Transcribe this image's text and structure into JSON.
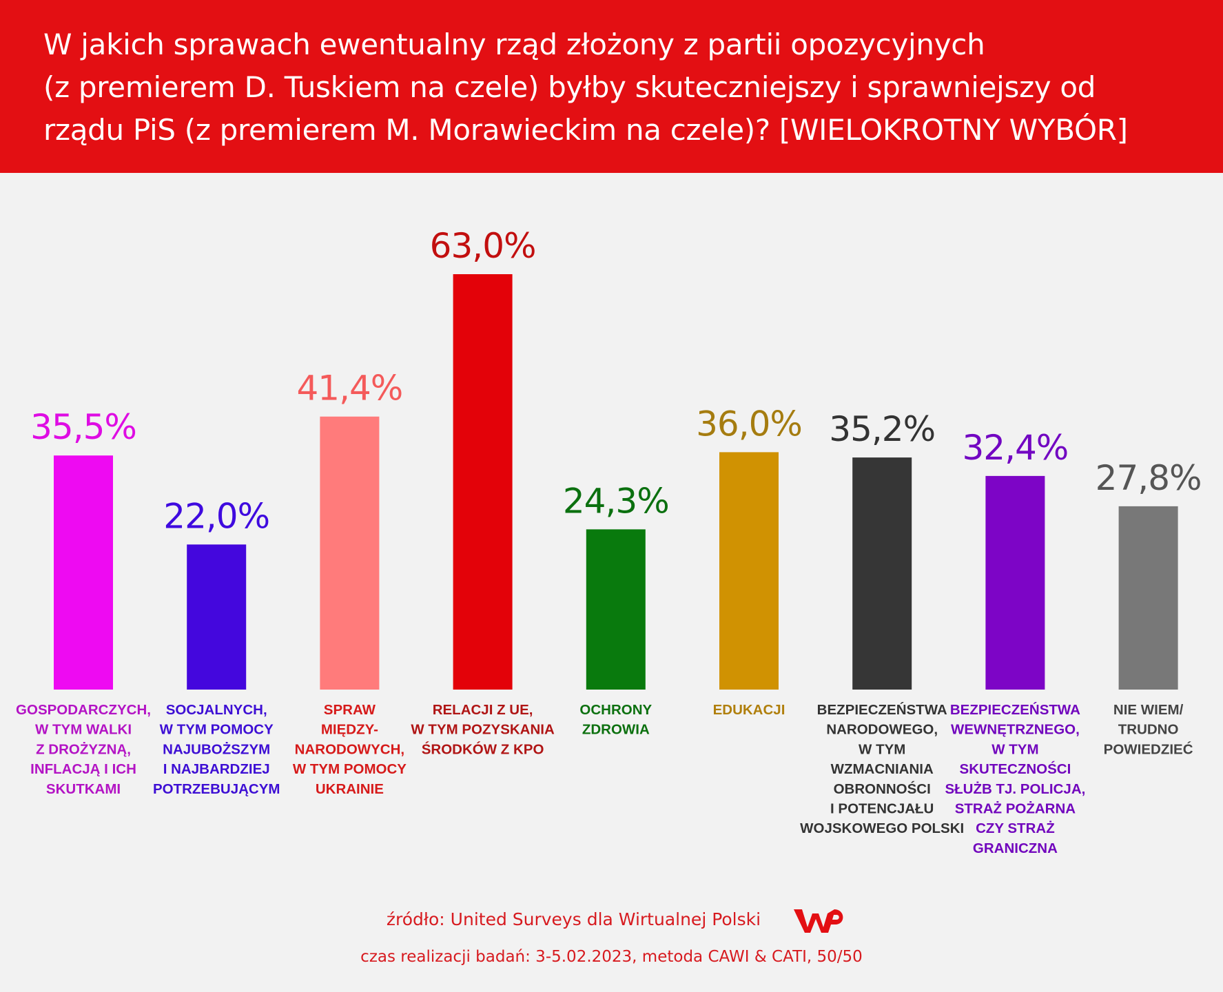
{
  "header": {
    "title_lines": [
      "W jakich sprawach ewentualny rząd złożony z partii opozycyjnych",
      "(z premierem D. Tuskiem na czele) byłby skuteczniejszy i sprawniejszy od",
      "rządu PiS (z premierem M. Morawieckim na czele)? [WIELOKROTNY WYBÓR]"
    ]
  },
  "chart_data": {
    "type": "bar",
    "title": "W jakich sprawach ewentualny rząd złożony z partii opozycyjnych (z premierem D. Tuskiem na czele) byłby skuteczniejszy i sprawniejszy od rządu PiS (z premierem M. Morawieckim na czele)? [WIELOKROTNY WYBÓR]",
    "xlabel": "",
    "ylabel": "",
    "ylim": [
      0,
      63
    ],
    "grid": false,
    "legend": "none",
    "value_suffix": "%",
    "categories": [
      "GOSPODARCZYCH, W TYM WALKI Z DROŻYZNĄ, INFLACJĄ I ICH SKUTKAMI",
      "SOCJALNYCH, W TYM POMOCY NAJUBOŻSZYM I NAJBARDZIEJ POTRZEBUJĄCYM",
      "SPRAW MIĘDZY-NARODOWYCH, W TYM POMOCY UKRAINIE",
      "RELACJI Z UE, W TYM POZYSKANIA ŚRODKÓW Z KPO",
      "OCHRONY ZDROWIA",
      "EDUKACJI",
      "BEZPIECZEŃSTWA NARODOWEGO, W TYM WZMACNIANIA OBRONNOŚCI I POTENCJAŁU WOJSKOWEGO POLSKI",
      "BEZPIECZEŃSTWA WEWNĘTRZNEGO, W TYM SKUTECZNOŚCI SŁUŻB TJ. POLICJA, STRAŻ POŻARNA CZY STRAŻ GRANICZNA",
      "NIE WIEM/ TRUDNO POWIEDZIEĆ"
    ],
    "category_lines": [
      [
        "GOSPODARCZYCH,",
        "W TYM WALKI",
        "Z DROŻYZNĄ,",
        "INFLACJĄ I ICH",
        "SKUTKAMI"
      ],
      [
        "SOCJALNYCH,",
        "W TYM POMOCY",
        "NAJUBOŻSZYM",
        "I NAJBARDZIEJ",
        "POTRZEBUJĄCYM"
      ],
      [
        "SPRAW",
        "MIĘDZY-",
        "NARODOWYCH,",
        "W TYM POMOCY",
        "UKRAINIE"
      ],
      [
        "RELACJI Z UE,",
        "W TYM POZYSKANIA",
        "ŚRODKÓW Z KPO"
      ],
      [
        "OCHRONY",
        "ZDROWIA"
      ],
      [
        "EDUKACJI"
      ],
      [
        "BEZPIECZEŃSTWA",
        "NARODOWEGO,",
        "W TYM",
        "WZMACNIANIA",
        "OBRONNOŚCI",
        "I POTENCJAŁU",
        "WOJSKOWEGO POLSKI"
      ],
      [
        "BEZPIECZEŃSTWA",
        "WEWNĘTRZNEGO,",
        "W TYM",
        "SKUTECZNOŚCI",
        "SŁUŻB TJ. POLICJA,",
        "STRAŻ POŻARNA",
        "CZY STRAŻ",
        "GRANICZNA"
      ],
      [
        "NIE WIEM/",
        "TRUDNO",
        "POWIEDZIEĆ"
      ]
    ],
    "values": [
      35.5,
      22.0,
      41.4,
      63.0,
      24.3,
      36.0,
      35.2,
      32.4,
      27.8
    ],
    "value_labels": [
      "35,5%",
      "22,0%",
      "41,4%",
      "63,0%",
      "24,3%",
      "36,0%",
      "35,2%",
      "32,4%",
      "27,8%"
    ],
    "bar_colors": [
      "#ee0af2",
      "#4407dd",
      "#ff7b7b",
      "#e30209",
      "#097a0d",
      "#d09202",
      "#363636",
      "#7d05c6",
      "#787878"
    ],
    "value_label_colors": [
      "#de0ce3",
      "#3f0adf",
      "#f45a5a",
      "#c20f0f",
      "#0b700f",
      "#a57c10",
      "#333333",
      "#7206c2",
      "#555555"
    ],
    "category_label_colors": [
      "#b313c4",
      "#3d0ed4",
      "#d61a1a",
      "#b01515",
      "#0c700f",
      "#b07f0c",
      "#333333",
      "#7106bd",
      "#444444"
    ]
  },
  "footer": {
    "source": "źródło: United Surveys dla Wirtualnej Polski",
    "method": "czas realizacji badań: 3-5.02.2023, metoda CAWI & CATI, 50/50",
    "logo_text": "WP",
    "logo_color": "#e30f13"
  }
}
